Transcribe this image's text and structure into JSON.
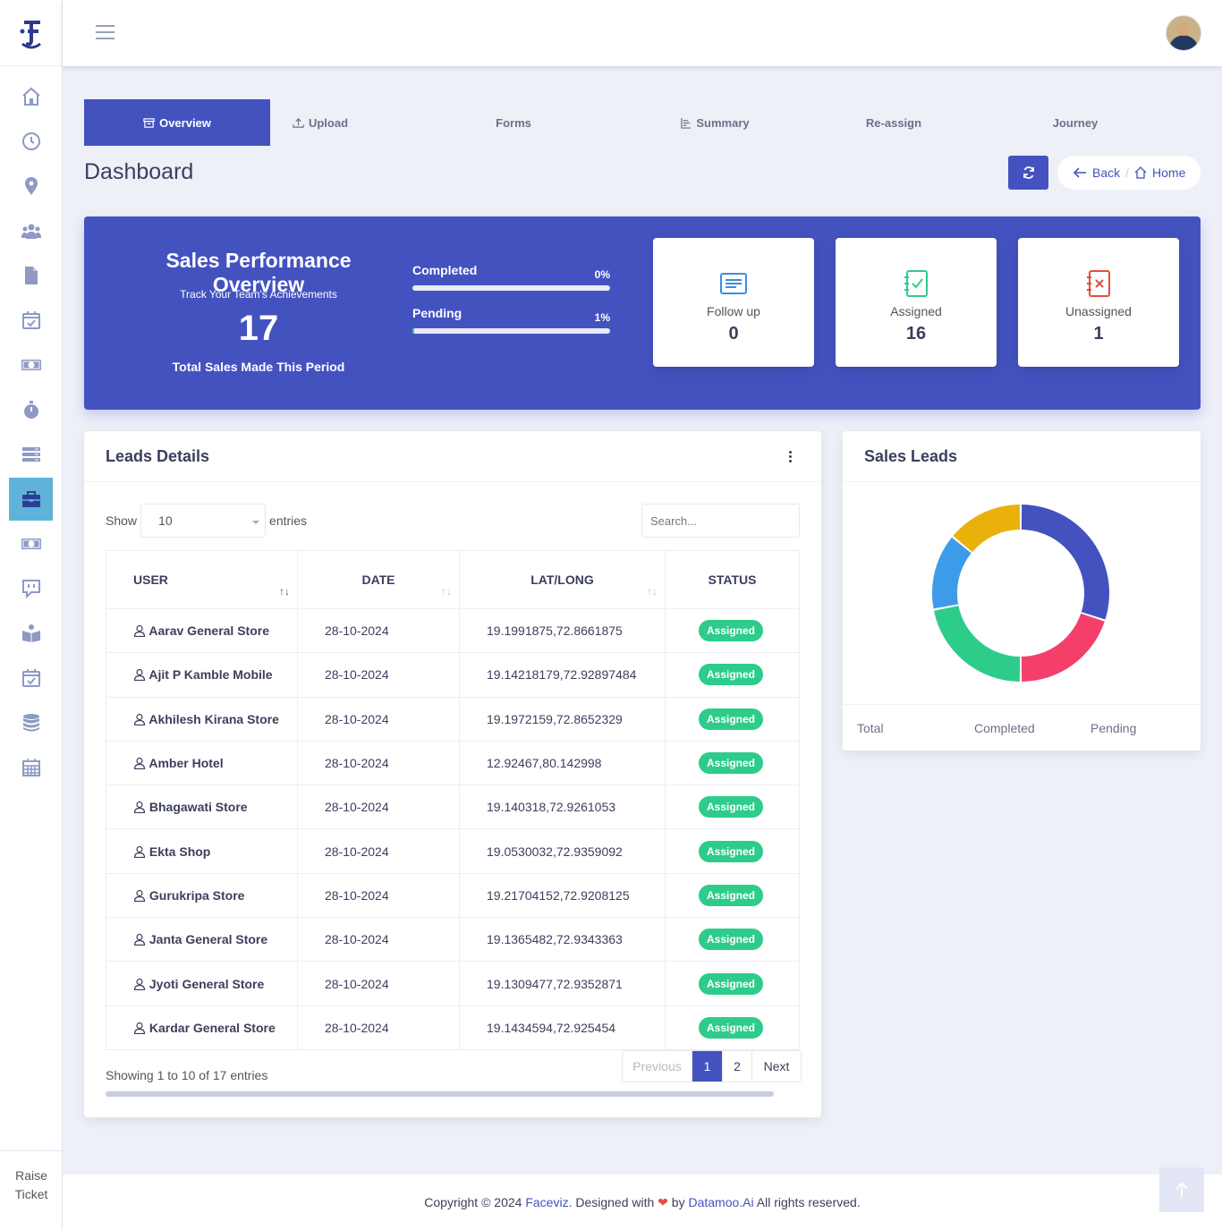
{
  "colors": {
    "accent": "#4452c0",
    "success": "#2ecc8a",
    "active_sidebar": "#5fb3d8"
  },
  "sidebar": {
    "logo_icon": "faceviz-logo",
    "items": [
      {
        "icon": "home-icon"
      },
      {
        "icon": "clock-icon"
      },
      {
        "icon": "map-pin-icon"
      },
      {
        "icon": "users-icon"
      },
      {
        "icon": "file-icon"
      },
      {
        "icon": "calendar-check-icon"
      },
      {
        "icon": "money-icon"
      },
      {
        "icon": "stopwatch-icon"
      },
      {
        "icon": "list-icon"
      },
      {
        "icon": "briefcase-icon",
        "active": true
      },
      {
        "icon": "money-icon"
      },
      {
        "icon": "chat-icon"
      },
      {
        "icon": "book-icon"
      },
      {
        "icon": "calendar-check-icon"
      },
      {
        "icon": "database-icon"
      },
      {
        "icon": "calendar-grid-icon"
      }
    ],
    "raise_ticket_line1": "Raise",
    "raise_ticket_line2": "Ticket"
  },
  "tabs": [
    {
      "label": "Overview",
      "icon": "archive-icon",
      "active": true
    },
    {
      "label": "Upload",
      "icon": "upload-icon"
    },
    {
      "label": "Forms"
    },
    {
      "label": "Summary",
      "icon": "summary-icon"
    },
    {
      "label": "Re-assign"
    },
    {
      "label": "Journey"
    }
  ],
  "page_title": "Dashboard",
  "breadcrumb": {
    "back": "Back",
    "separator": "/",
    "home": "Home"
  },
  "hero": {
    "title": "Sales Performance Overview",
    "subtitle": "Track Your Team's Achievements",
    "total": "17",
    "caption": "Total Sales Made This Period",
    "progress": [
      {
        "label": "Completed",
        "percent_text": "0%",
        "value": 0
      },
      {
        "label": "Pending",
        "percent_text": "1%",
        "value": 1
      }
    ],
    "stats": [
      {
        "label": "Follow up",
        "value": "0",
        "icon": "list-card-icon",
        "color": "#3d8de0"
      },
      {
        "label": "Assigned",
        "value": "16",
        "icon": "checklist-icon",
        "color": "#2ecc8a"
      },
      {
        "label": "Unassigned",
        "value": "1",
        "icon": "checklist-x-icon",
        "color": "#e84c3d"
      }
    ]
  },
  "leads": {
    "title": "Leads Details",
    "show_label": "Show",
    "entries_value": "10",
    "entries_label": "entries",
    "search_placeholder": "Search...",
    "columns": [
      "USER",
      "DATE",
      "LAT/LONG",
      "STATUS"
    ],
    "rows": [
      {
        "user": "Aarav General Store",
        "date": "28-10-2024",
        "latlong": "19.1991875,72.8661875",
        "status": "Assigned"
      },
      {
        "user": "Ajit P Kamble Mobile",
        "date": "28-10-2024",
        "latlong": "19.14218179,72.92897484",
        "status": "Assigned"
      },
      {
        "user": "Akhilesh Kirana Store",
        "date": "28-10-2024",
        "latlong": "19.1972159,72.8652329",
        "status": "Assigned"
      },
      {
        "user": "Amber Hotel",
        "date": "28-10-2024",
        "latlong": "12.92467,80.142998",
        "status": "Assigned"
      },
      {
        "user": "Bhagawati Store",
        "date": "28-10-2024",
        "latlong": "19.140318,72.9261053",
        "status": "Assigned"
      },
      {
        "user": "Ekta Shop",
        "date": "28-10-2024",
        "latlong": "19.0530032,72.9359092",
        "status": "Assigned"
      },
      {
        "user": "Gurukripa Store",
        "date": "28-10-2024",
        "latlong": "19.21704152,72.9208125",
        "status": "Assigned"
      },
      {
        "user": "Janta General Store",
        "date": "28-10-2024",
        "latlong": "19.1365482,72.9343363",
        "status": "Assigned"
      },
      {
        "user": "Jyoti General Store",
        "date": "28-10-2024",
        "latlong": "19.1309477,72.9352871",
        "status": "Assigned"
      },
      {
        "user": "Kardar General Store",
        "date": "28-10-2024",
        "latlong": "19.1434594,72.925454",
        "status": "Assigned"
      }
    ],
    "info": "Showing 1 to 10 of 17 entries",
    "pagination": {
      "previous": "Previous",
      "pages": [
        "1",
        "2"
      ],
      "current": "1",
      "next": "Next"
    }
  },
  "sales_leads": {
    "title": "Sales Leads",
    "legend": [
      "Total",
      "Completed",
      "Pending"
    ],
    "donut_segments": [
      {
        "color": "#4452c0",
        "fraction": 0.3
      },
      {
        "color": "#f43f6b",
        "fraction": 0.2
      },
      {
        "color": "#2ecc8a",
        "fraction": 0.22
      },
      {
        "color": "#3d9be9",
        "fraction": 0.14
      },
      {
        "color": "#e9b10a",
        "fraction": 0.14
      }
    ]
  },
  "footer": {
    "prefix": "Copyright © 2024",
    "brand": "Faceviz",
    "middle": ". Designed with",
    "heart": "❤",
    "by": "by",
    "company": "Datamoo.Ai",
    "suffix": "All rights reserved."
  }
}
